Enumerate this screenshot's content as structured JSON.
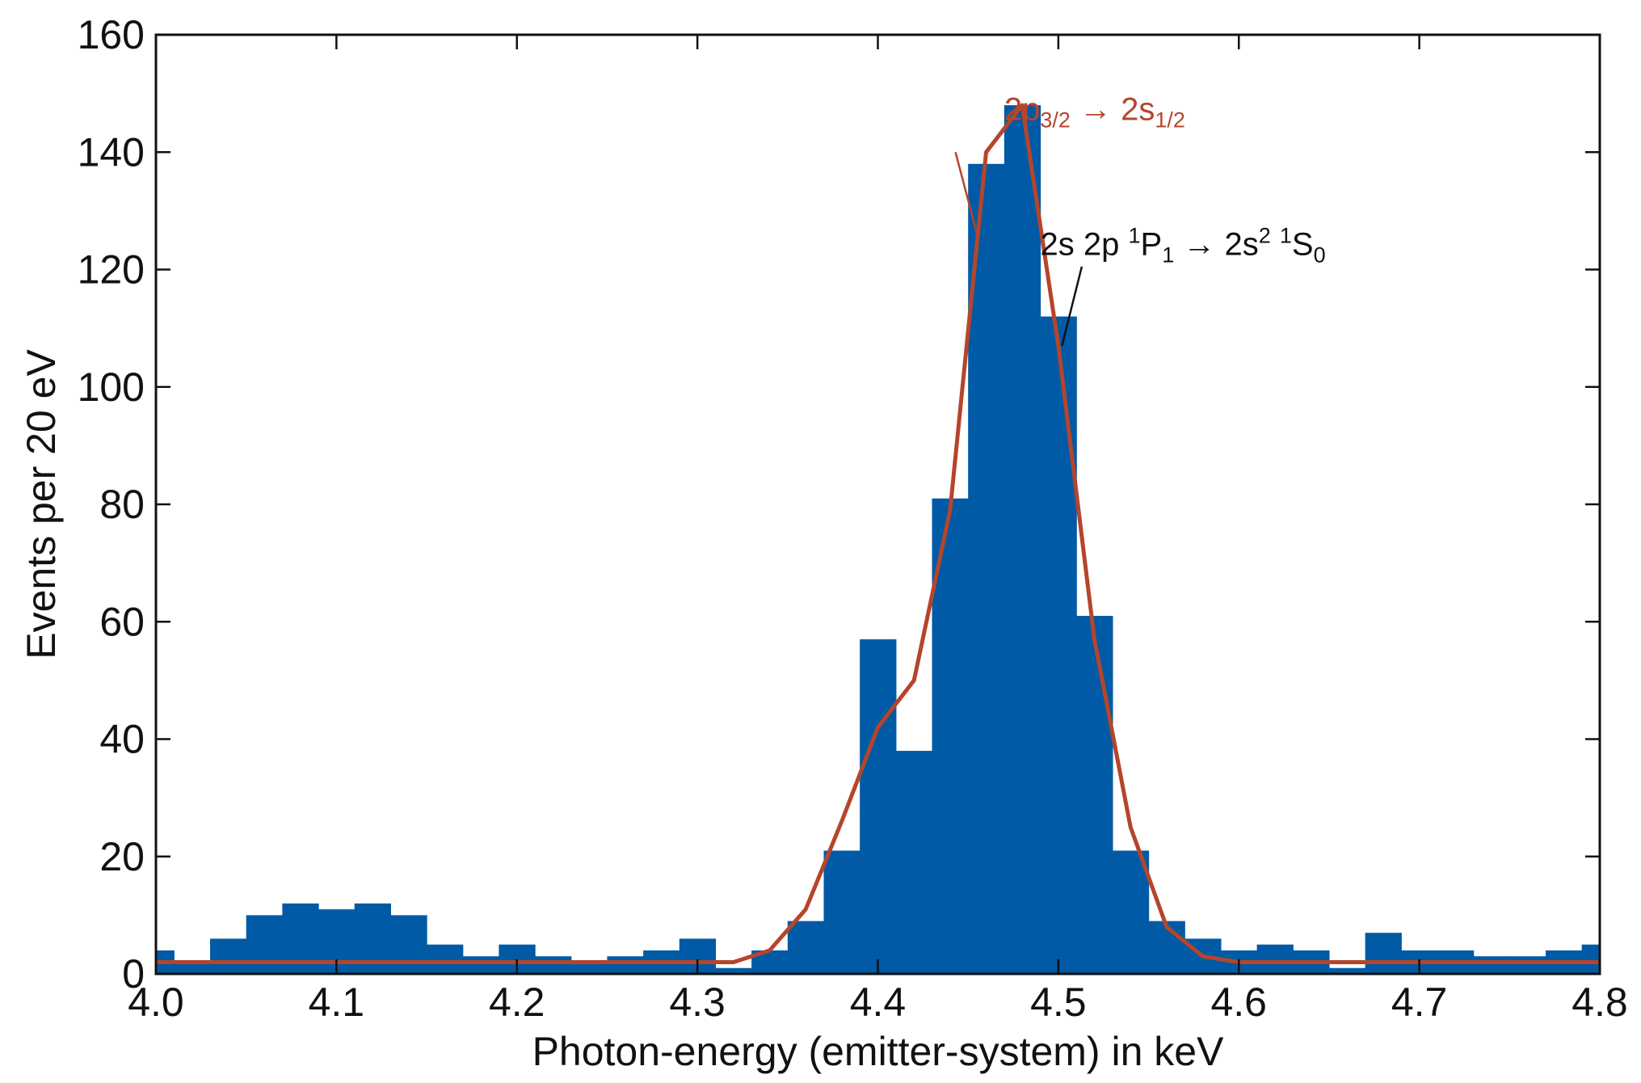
{
  "chart_data": {
    "type": "bar",
    "xlabel": "Photon-energy (emitter-system) in keV",
    "ylabel": "Events per 20 eV",
    "xlim": [
      4.0,
      4.8
    ],
    "ylim": [
      0,
      160
    ],
    "xticks": [
      "4.0",
      "4.1",
      "4.2",
      "4.3",
      "4.4",
      "4.5",
      "4.6",
      "4.7",
      "4.8"
    ],
    "yticks": [
      "0",
      "20",
      "40",
      "60",
      "80",
      "100",
      "120",
      "140",
      "160"
    ],
    "bin_width": 0.02,
    "histogram": {
      "bin_edges": [
        3.99,
        4.01,
        4.03,
        4.05,
        4.07,
        4.09,
        4.11,
        4.13,
        4.15,
        4.17,
        4.19,
        4.21,
        4.23,
        4.25,
        4.27,
        4.29,
        4.31,
        4.33,
        4.35,
        4.37,
        4.39,
        4.41,
        4.43,
        4.45,
        4.47,
        4.49,
        4.51,
        4.53,
        4.55,
        4.57,
        4.59,
        4.61,
        4.63,
        4.65,
        4.67,
        4.69,
        4.71,
        4.73,
        4.75,
        4.77,
        4.79,
        4.81
      ],
      "counts": [
        4,
        2,
        6,
        10,
        12,
        11,
        12,
        10,
        5,
        3,
        5,
        3,
        2,
        3,
        4,
        6,
        1,
        4,
        9,
        21,
        57,
        38,
        81,
        138,
        148,
        112,
        61,
        21,
        9,
        6,
        4,
        5,
        4,
        1,
        7,
        4,
        4,
        3,
        3,
        4,
        5
      ],
      "color": "#005aa5"
    },
    "fit_curve": {
      "color": "#b5452b",
      "x": [
        4.0,
        4.02,
        4.04,
        4.06,
        4.08,
        4.1,
        4.12,
        4.14,
        4.16,
        4.18,
        4.2,
        4.22,
        4.24,
        4.26,
        4.28,
        4.3,
        4.32,
        4.34,
        4.36,
        4.38,
        4.4,
        4.42,
        4.44,
        4.46,
        4.48,
        4.5,
        4.52,
        4.54,
        4.56,
        4.58,
        4.6,
        4.62,
        4.64,
        4.66,
        4.68,
        4.7,
        4.72,
        4.74,
        4.76,
        4.78,
        4.8
      ],
      "y": [
        2,
        2,
        2,
        2,
        2,
        2,
        2,
        2,
        2,
        2,
        2,
        2,
        2,
        2,
        2,
        2,
        2,
        4,
        11,
        26,
        42,
        50,
        79,
        140,
        148,
        107,
        57,
        25,
        8,
        3,
        2,
        2,
        2,
        2,
        2,
        2,
        2,
        2,
        2,
        2,
        2
      ]
    },
    "annotations": [
      {
        "color": "#b5452b",
        "label_x": 4.47,
        "label_y": 145.5,
        "pointer_from": [
          4.443,
          140
        ],
        "pointer_to": [
          4.455,
          126
        ],
        "parts": [
          {
            "t": "2p",
            "style": "normal"
          },
          {
            "t": "3/2",
            "style": "sub"
          },
          {
            "t": " → 2s",
            "style": "normal"
          },
          {
            "t": "1/2",
            "style": "sub"
          }
        ]
      },
      {
        "color": "#111111",
        "label_x": 4.49,
        "label_y": 122.5,
        "pointer_from": [
          4.513,
          120.5
        ],
        "pointer_to": [
          4.502,
          107
        ],
        "parts": [
          {
            "t": "2s 2p ",
            "style": "normal"
          },
          {
            "t": "1",
            "style": "sup"
          },
          {
            "t": "P",
            "style": "normal"
          },
          {
            "t": "1",
            "style": "sub"
          },
          {
            "t": " → 2s",
            "style": "normal"
          },
          {
            "t": "2",
            "style": "sup"
          },
          {
            "t": " ",
            "style": "normal"
          },
          {
            "t": "1",
            "style": "sup"
          },
          {
            "t": "S",
            "style": "normal"
          },
          {
            "t": "0",
            "style": "sub"
          }
        ]
      }
    ]
  }
}
